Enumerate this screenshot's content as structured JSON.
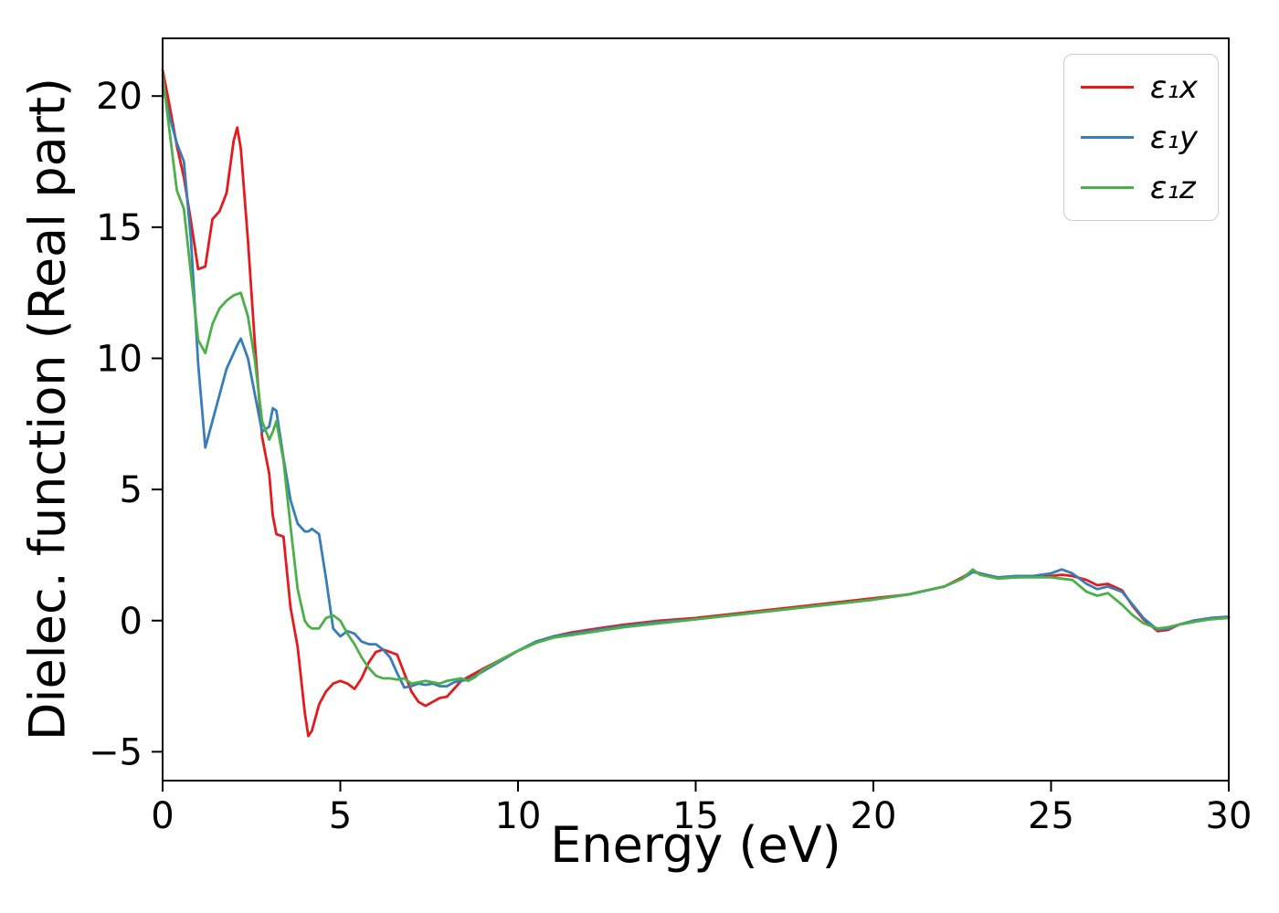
{
  "chart_data": {
    "type": "line",
    "title": "",
    "xlabel": "Energy (eV)",
    "ylabel": "Dielec. function (Real part)",
    "xlim": [
      0,
      30
    ],
    "ylim": [
      -6.1,
      22.2
    ],
    "xticks": [
      0,
      5,
      10,
      15,
      20,
      25,
      30
    ],
    "xtick_labels": [
      "0",
      "5",
      "10",
      "15",
      "20",
      "25",
      "30"
    ],
    "yticks": [
      -5,
      0,
      5,
      10,
      15,
      20
    ],
    "ytick_labels": [
      "−5",
      "0",
      "5",
      "10",
      "15",
      "20"
    ],
    "grid": false,
    "legend_position": "upper right",
    "x": [
      0,
      0.2,
      0.4,
      0.6,
      0.8,
      1.0,
      1.2,
      1.4,
      1.6,
      1.8,
      2.0,
      2.1,
      2.2,
      2.4,
      2.6,
      2.8,
      3.0,
      3.1,
      3.2,
      3.4,
      3.6,
      3.8,
      4.0,
      4.1,
      4.2,
      4.4,
      4.6,
      4.8,
      5.0,
      5.2,
      5.4,
      5.6,
      5.8,
      6.0,
      6.2,
      6.4,
      6.6,
      6.8,
      7.0,
      7.2,
      7.4,
      7.6,
      7.8,
      8.0,
      8.2,
      8.4,
      8.6,
      8.8,
      9.0,
      9.5,
      10.0,
      10.5,
      11.0,
      11.5,
      12.0,
      12.5,
      13.0,
      14.0,
      15.0,
      16.0,
      17.0,
      18.0,
      19.0,
      20.0,
      21.0,
      22.0,
      22.5,
      22.8,
      23.0,
      23.5,
      24.0,
      24.5,
      25.0,
      25.3,
      25.6,
      26.0,
      26.3,
      26.6,
      27.0,
      27.3,
      27.6,
      28.0,
      28.3,
      28.6,
      29.0,
      29.5,
      30.0
    ],
    "series": [
      {
        "name": "epsilon1-x",
        "label": "ε₁x",
        "color": "#e41a1c",
        "values": [
          21.0,
          19.6,
          18.1,
          16.9,
          15.2,
          13.4,
          13.5,
          15.3,
          15.6,
          16.3,
          18.3,
          18.8,
          18.0,
          14.5,
          10.5,
          7.0,
          5.6,
          4.0,
          3.3,
          3.2,
          0.5,
          -1.0,
          -3.5,
          -4.4,
          -4.2,
          -3.2,
          -2.7,
          -2.4,
          -2.3,
          -2.4,
          -2.6,
          -2.2,
          -1.6,
          -1.2,
          -1.1,
          -1.2,
          -1.3,
          -2.0,
          -2.7,
          -3.1,
          -3.25,
          -3.1,
          -2.95,
          -2.9,
          -2.6,
          -2.3,
          -2.15,
          -2.0,
          -1.85,
          -1.5,
          -1.15,
          -0.85,
          -0.6,
          -0.45,
          -0.35,
          -0.25,
          -0.15,
          0.0,
          0.1,
          0.25,
          0.4,
          0.55,
          0.7,
          0.85,
          1.0,
          1.3,
          1.65,
          1.9,
          1.8,
          1.62,
          1.65,
          1.68,
          1.7,
          1.75,
          1.7,
          1.55,
          1.35,
          1.4,
          1.15,
          0.55,
          0.05,
          -0.4,
          -0.35,
          -0.15,
          -0.05,
          0.1,
          0.15
        ]
      },
      {
        "name": "epsilon1-y",
        "label": "ε₁y",
        "color": "#377eb8",
        "values": [
          20.4,
          19.2,
          18.2,
          17.5,
          14.5,
          9.8,
          6.6,
          7.6,
          8.6,
          9.6,
          10.2,
          10.5,
          10.75,
          10.0,
          8.6,
          7.2,
          7.4,
          8.1,
          8.0,
          6.2,
          4.6,
          3.7,
          3.4,
          3.4,
          3.5,
          3.3,
          1.6,
          -0.3,
          -0.6,
          -0.4,
          -0.5,
          -0.8,
          -0.9,
          -0.9,
          -1.1,
          -1.4,
          -2.0,
          -2.55,
          -2.5,
          -2.4,
          -2.45,
          -2.4,
          -2.5,
          -2.5,
          -2.35,
          -2.3,
          -2.25,
          -2.1,
          -1.95,
          -1.55,
          -1.15,
          -0.8,
          -0.6,
          -0.5,
          -0.4,
          -0.3,
          -0.2,
          -0.05,
          0.05,
          0.2,
          0.35,
          0.5,
          0.65,
          0.8,
          1.0,
          1.3,
          1.6,
          1.85,
          1.8,
          1.65,
          1.7,
          1.7,
          1.8,
          1.95,
          1.8,
          1.4,
          1.2,
          1.3,
          1.1,
          0.6,
          0.1,
          -0.35,
          -0.3,
          -0.15,
          0.0,
          0.1,
          0.15
        ]
      },
      {
        "name": "epsilon1-z",
        "label": "ε₁z",
        "color": "#4daf4a",
        "values": [
          20.8,
          18.6,
          16.4,
          15.7,
          13.2,
          10.7,
          10.2,
          11.3,
          11.9,
          12.2,
          12.4,
          12.45,
          12.5,
          11.6,
          9.9,
          7.6,
          6.9,
          7.2,
          7.6,
          6.1,
          3.6,
          1.2,
          0.0,
          -0.2,
          -0.3,
          -0.3,
          0.1,
          0.2,
          0.0,
          -0.5,
          -0.9,
          -1.4,
          -1.8,
          -2.1,
          -2.2,
          -2.2,
          -2.25,
          -2.2,
          -2.4,
          -2.35,
          -2.3,
          -2.35,
          -2.4,
          -2.3,
          -2.25,
          -2.2,
          -2.3,
          -2.15,
          -1.9,
          -1.5,
          -1.15,
          -0.85,
          -0.65,
          -0.55,
          -0.45,
          -0.35,
          -0.25,
          -0.1,
          0.05,
          0.2,
          0.35,
          0.5,
          0.65,
          0.8,
          1.0,
          1.3,
          1.6,
          1.95,
          1.75,
          1.6,
          1.65,
          1.65,
          1.65,
          1.6,
          1.55,
          1.1,
          0.95,
          1.05,
          0.6,
          0.2,
          -0.1,
          -0.3,
          -0.25,
          -0.15,
          -0.05,
          0.05,
          0.1
        ]
      }
    ]
  }
}
